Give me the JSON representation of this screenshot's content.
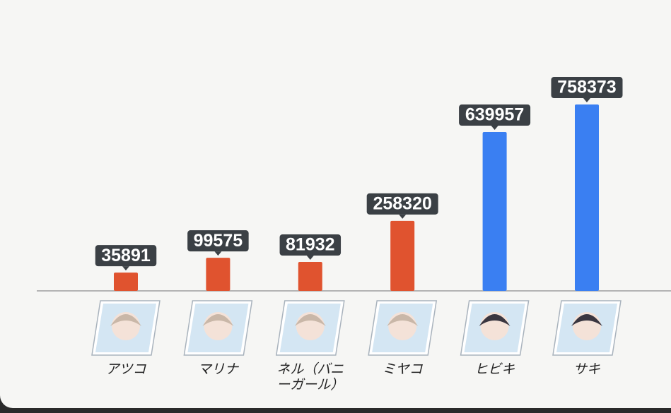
{
  "chart_data": {
    "type": "bar",
    "categories": [
      "アツコ",
      "マリナ",
      "ネル（バニーガール）",
      "ミヤコ",
      "ヒビキ",
      "サキ"
    ],
    "values": [
      35891,
      99575,
      81932,
      258320,
      639957,
      758373
    ],
    "colors": [
      "#e0532f",
      "#e0532f",
      "#e0532f",
      "#e0532f",
      "#3a7ff2",
      "#3a7ff2"
    ]
  }
}
